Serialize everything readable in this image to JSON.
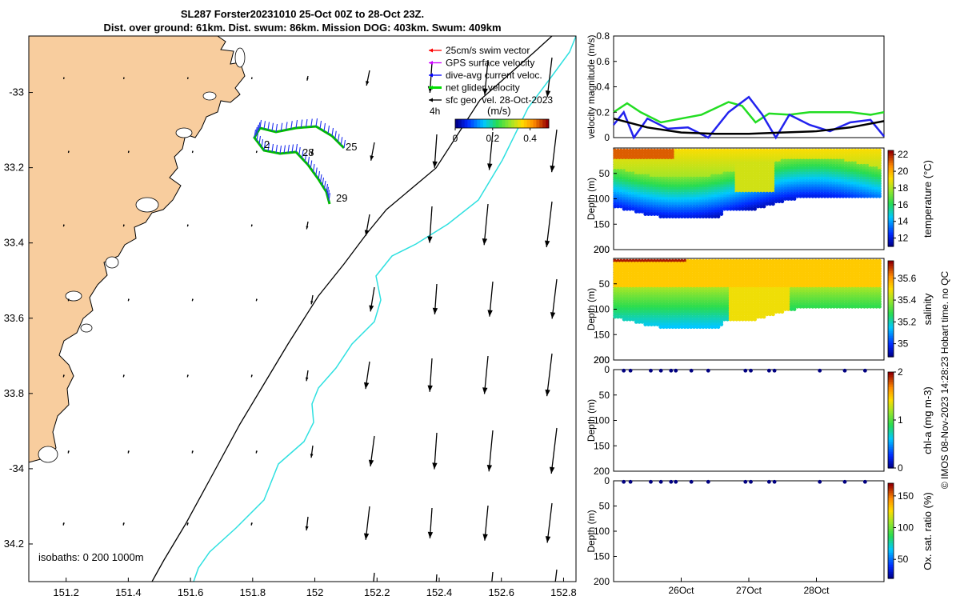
{
  "title": {
    "line1": "SL287 Forster20231010 25-Oct 00Z to 28-Oct 23Z.",
    "line2": "Dist. over ground: 61km. Dist. swum: 86km. Mission DOG: 403km. Swum: 409km"
  },
  "map": {
    "lon_ticks": [
      "151.2",
      "151.4",
      "151.6",
      "151.8",
      "152",
      "152.2",
      "152.4",
      "152.6",
      "152.8"
    ],
    "lat_ticks": [
      "-33",
      "33.2",
      "33.4",
      "33.6",
      "33.8",
      "-34",
      "34.2"
    ],
    "lon_range": [
      151.08,
      152.84
    ],
    "lat_range": [
      -34.3,
      -32.85
    ],
    "legend": [
      {
        "label": "25cm/s swim vector",
        "color": "#ff0000"
      },
      {
        "label": "GPS surface velocity",
        "color": "#cc00ff"
      },
      {
        "label": "dive-avg current veloc.",
        "color": "#0000ff"
      },
      {
        "label": "net glider velocity",
        "color": "#00dd00"
      },
      {
        "label": "sfc geo. vel. 28-Oct-2023",
        "color": "#000000"
      }
    ],
    "legend_extra": "4h",
    "colorbar": {
      "label": "(m/s)",
      "ticks": [
        "0",
        "0.2",
        "0.4"
      ],
      "range": [
        0,
        0.5
      ]
    },
    "track_labels": [
      "25",
      "28",
      "29",
      "2"
    ],
    "isobaths_label": "isobaths: 0   200  1000m",
    "land_color": "#f8cd9e",
    "isobath_200_color": "#000000",
    "isobath_1000_color": "#2ee0e0"
  },
  "chart_data": [
    {
      "type": "line",
      "title": "velocity magnitude",
      "ylabel": "velocity magnitude (m/s)",
      "ylim": [
        0,
        0.8
      ],
      "yticks": [
        "0",
        "0.2",
        "0.4",
        "0.6",
        "0.8"
      ],
      "x_range": [
        25.0,
        29.0
      ],
      "series": [
        {
          "name": "net glider velocity",
          "color": "#22dd22",
          "x": [
            25.0,
            25.2,
            25.4,
            25.7,
            26.0,
            26.3,
            26.7,
            26.9,
            27.1,
            27.3,
            27.6,
            27.9,
            28.2,
            28.5,
            28.8,
            29.0
          ],
          "values": [
            0.2,
            0.27,
            0.2,
            0.12,
            0.15,
            0.18,
            0.28,
            0.25,
            0.12,
            0.19,
            0.18,
            0.2,
            0.2,
            0.2,
            0.18,
            0.2
          ]
        },
        {
          "name": "dive-avg current",
          "color": "#2222ee",
          "x": [
            25.0,
            25.15,
            25.3,
            25.5,
            25.8,
            26.1,
            26.4,
            26.7,
            27.0,
            27.2,
            27.4,
            27.6,
            27.9,
            28.2,
            28.5,
            28.8,
            29.0
          ],
          "values": [
            0.1,
            0.2,
            0.0,
            0.15,
            0.07,
            0.08,
            0.0,
            0.2,
            0.32,
            0.18,
            0.0,
            0.18,
            0.1,
            0.05,
            0.12,
            0.14,
            0.01
          ]
        },
        {
          "name": "sfc geo",
          "color": "#000000",
          "x": [
            25.0,
            25.5,
            26.0,
            26.5,
            27.0,
            27.5,
            28.0,
            28.5,
            29.0
          ],
          "values": [
            0.15,
            0.08,
            0.04,
            0.03,
            0.03,
            0.04,
            0.05,
            0.08,
            0.13
          ]
        }
      ]
    },
    {
      "type": "scatter",
      "title": "temperature",
      "ylabel": "Depth (m)",
      "cbar_label": "temperature (°C)",
      "cbar_ticks": [
        "12",
        "14",
        "16",
        "18",
        "20",
        "22"
      ],
      "clim": [
        11,
        22.5
      ],
      "yticks": [
        "50",
        "100",
        "150",
        "200"
      ],
      "ylim": [
        0,
        200
      ]
    },
    {
      "type": "scatter",
      "title": "salinity",
      "ylabel": "Depth (m)",
      "cbar_label": "salinity",
      "cbar_ticks": [
        "35",
        "35.2",
        "35.4",
        "35.6"
      ],
      "clim": [
        34.88,
        35.76
      ],
      "yticks": [
        "50",
        "100",
        "150",
        "200"
      ],
      "ylim": [
        0,
        200
      ]
    },
    {
      "type": "scatter",
      "title": "chlorophyll",
      "ylabel": "Depth (m)",
      "cbar_label": "chl-a (mg m-3)",
      "cbar_ticks": [
        "0",
        "1",
        "2"
      ],
      "clim": [
        0,
        2
      ],
      "yticks": [
        "0",
        "50",
        "100",
        "150",
        "200"
      ],
      "ylim": [
        0,
        200
      ],
      "surface_points_x": [
        25.15,
        25.25,
        25.55,
        25.7,
        25.85,
        25.92,
        26.15,
        26.4,
        26.95,
        27.03,
        27.3,
        27.38,
        28.05,
        28.42,
        28.72
      ]
    },
    {
      "type": "scatter",
      "title": "oxygen",
      "ylabel": "Depth (m)",
      "cbar_label": "Ox. sat. ratio (%)",
      "cbar_ticks": [
        "50",
        "100",
        "150"
      ],
      "clim": [
        20,
        170
      ],
      "yticks": [
        "0",
        "50",
        "100",
        "150",
        "200"
      ],
      "ylim": [
        0,
        200
      ],
      "surface_points_x": [
        25.15,
        25.25,
        25.55,
        25.7,
        25.85,
        25.92,
        26.15,
        26.4,
        26.95,
        27.03,
        27.3,
        27.38,
        28.05,
        28.42,
        28.72
      ]
    }
  ],
  "time_axis": {
    "ticks": [
      "26Oct",
      "27Oct",
      "28Oct"
    ]
  },
  "footer": "© IMOS 08-Nov-2023 14:28:23 Hobart time. no QC"
}
